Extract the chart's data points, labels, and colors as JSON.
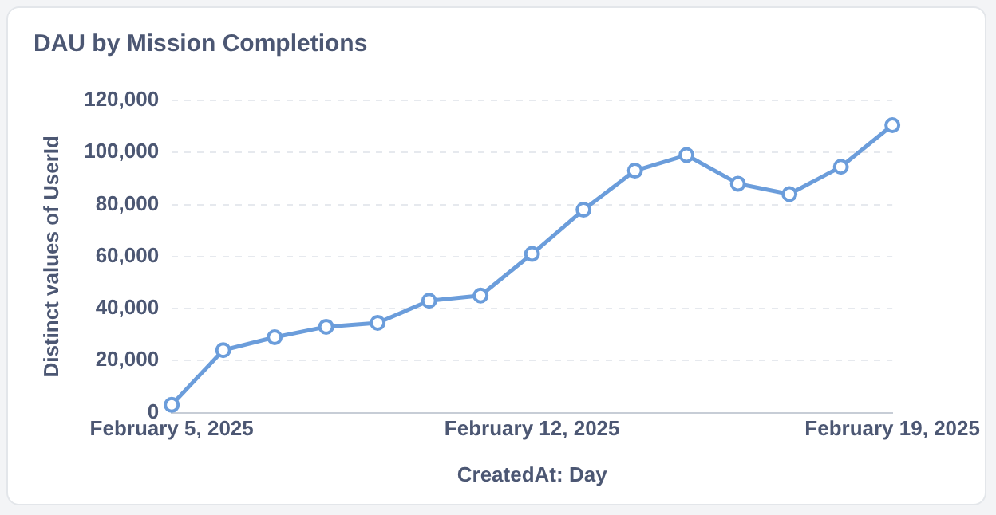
{
  "chart_data": {
    "type": "line",
    "title": "DAU by Mission Completions",
    "xlabel": "CreatedAt: Day",
    "ylabel": "Distinct values of UserId",
    "x": [
      "2025-02-05",
      "2025-02-06",
      "2025-02-07",
      "2025-02-08",
      "2025-02-09",
      "2025-02-10",
      "2025-02-11",
      "2025-02-12",
      "2025-02-13",
      "2025-02-14",
      "2025-02-15",
      "2025-02-16",
      "2025-02-17",
      "2025-02-18",
      "2025-02-19"
    ],
    "series": [
      {
        "color": "#6b9ddb",
        "values": [
          3000,
          24000,
          29000,
          33000,
          34500,
          43000,
          45000,
          61000,
          78000,
          93000,
          99000,
          88000,
          84000,
          94500,
          110500
        ]
      }
    ],
    "xlim": [
      "2025-02-05",
      "2025-02-19"
    ],
    "xticks": [
      {
        "value": "2025-02-05",
        "label": "February 5, 2025"
      },
      {
        "value": "2025-02-12",
        "label": "February 12, 2025"
      },
      {
        "value": "2025-02-19",
        "label": "February 19, 2025"
      }
    ],
    "ylim": [
      0,
      120000
    ],
    "yticks": [
      {
        "value": 0,
        "label": "0"
      },
      {
        "value": 20000,
        "label": "20,000"
      },
      {
        "value": 40000,
        "label": "40,000"
      },
      {
        "value": 60000,
        "label": "60,000"
      },
      {
        "value": 80000,
        "label": "80,000"
      },
      {
        "value": 100000,
        "label": "100,000"
      },
      {
        "value": 120000,
        "label": "120,000"
      }
    ],
    "grid": "y",
    "legend": false,
    "marker": "circle",
    "line_style": "solid"
  }
}
